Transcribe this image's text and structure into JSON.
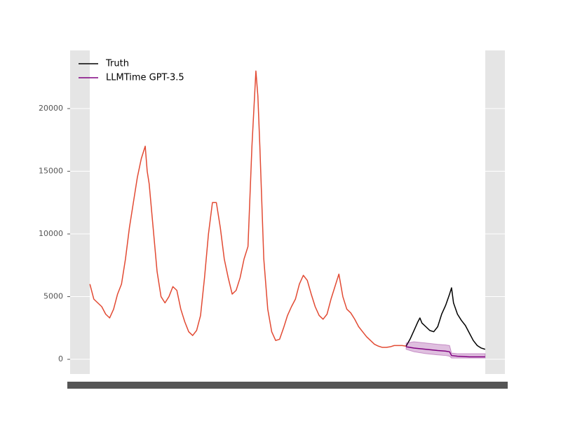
{
  "chart_data": {
    "type": "line",
    "grid": true,
    "legend": "upper left",
    "xlim": [
      -5,
      105
    ],
    "ylim": [
      -1170,
      24640
    ],
    "yticks": [
      0,
      5000,
      10000,
      15000,
      20000
    ],
    "history": {
      "color": "#e24a33",
      "x": [
        0,
        1,
        2,
        3,
        4,
        5,
        6,
        7,
        8,
        9,
        10,
        11,
        12,
        13,
        14,
        14.5,
        15,
        16,
        17,
        18,
        19,
        20,
        21,
        22,
        23,
        24,
        25,
        26,
        27,
        28,
        29,
        30,
        31,
        32,
        33,
        34,
        35,
        36,
        37,
        38,
        39,
        40,
        41,
        42,
        42.5,
        43,
        44,
        45,
        46,
        47,
        48,
        49,
        50,
        51,
        52,
        53,
        54,
        55,
        56,
        57,
        58,
        59,
        60,
        61,
        62,
        63,
        64,
        65,
        66,
        67,
        68,
        69,
        70,
        71,
        72,
        73,
        74,
        75,
        76,
        77,
        78,
        79,
        80
      ],
      "values": [
        6000,
        4800,
        4500,
        4200,
        3600,
        3300,
        4000,
        5200,
        6000,
        8000,
        10500,
        12500,
        14500,
        16000,
        17000,
        15000,
        14000,
        10500,
        7000,
        5000,
        4500,
        5000,
        5800,
        5500,
        4000,
        3000,
        2200,
        1900,
        2300,
        3500,
        6500,
        10000,
        12500,
        12500,
        10500,
        8000,
        6500,
        5200,
        5500,
        6500,
        8000,
        9000,
        17000,
        23000,
        21000,
        17000,
        8000,
        4000,
        2200,
        1500,
        1600,
        2500,
        3500,
        4200,
        4800,
        6000,
        6700,
        6300,
        5200,
        4200,
        3500,
        3200,
        3600,
        4800,
        5800,
        6800,
        5000,
        4000,
        3700,
        3200,
        2600,
        2200,
        1800,
        1500,
        1200,
        1050,
        950,
        950,
        1000,
        1100,
        1100,
        1100,
        1050
      ]
    },
    "series": [
      {
        "name": "Truth",
        "color": "#000000",
        "x": [
          80,
          81,
          82,
          83,
          83.5,
          84,
          85,
          86,
          87,
          88,
          89,
          90,
          91,
          91.5,
          92,
          93,
          94,
          95,
          96,
          97,
          98,
          99,
          100
        ],
        "values": [
          1050,
          1600,
          2300,
          3000,
          3300,
          2900,
          2600,
          2300,
          2200,
          2600,
          3600,
          4300,
          5200,
          5700,
          4500,
          3600,
          3100,
          2700,
          2100,
          1500,
          1100,
          900,
          800
        ]
      },
      {
        "name": "LLMTime GPT-3.5",
        "color": "#800080",
        "x": [
          80,
          82,
          85,
          88,
          90,
          91,
          91.5,
          93,
          96,
          100
        ],
        "values": [
          1000,
          900,
          800,
          700,
          650,
          600,
          300,
          250,
          200,
          200
        ],
        "lower": [
          800,
          600,
          450,
          350,
          300,
          250,
          100,
          100,
          100,
          100
        ],
        "upper": [
          1300,
          1400,
          1300,
          1200,
          1150,
          1100,
          500,
          450,
          450,
          450
        ]
      }
    ]
  }
}
